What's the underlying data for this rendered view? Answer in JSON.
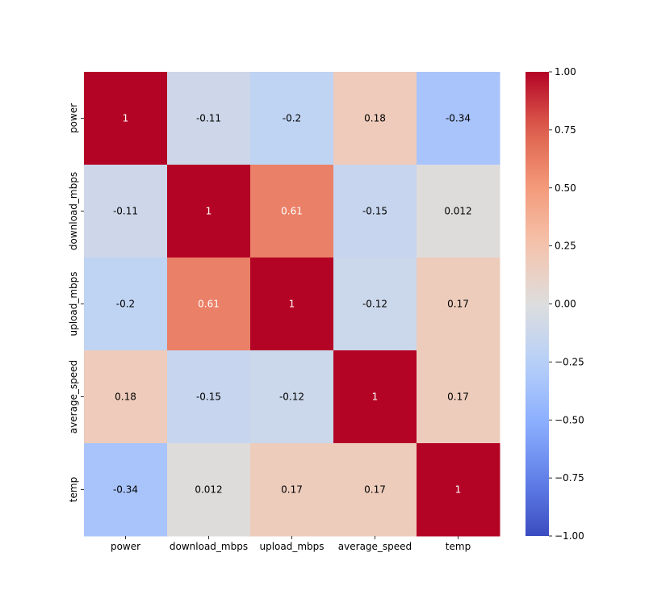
{
  "chart_data": {
    "type": "heatmap",
    "title": "",
    "xlabel": "",
    "ylabel": "",
    "categories": [
      "power",
      "download_mbps",
      "upload_mbps",
      "average_speed",
      "temp"
    ],
    "cell_labels": [
      [
        "1",
        "-0.11",
        "-0.2",
        "0.18",
        "-0.34"
      ],
      [
        "-0.11",
        "1",
        "0.61",
        "-0.15",
        "0.012"
      ],
      [
        "-0.2",
        "0.61",
        "1",
        "-0.12",
        "0.17"
      ],
      [
        "0.18",
        "-0.15",
        "-0.12",
        "1",
        "0.17"
      ],
      [
        "-0.34",
        "0.012",
        "0.17",
        "0.17",
        "1"
      ]
    ],
    "values": [
      [
        1,
        -0.11,
        -0.2,
        0.18,
        -0.34
      ],
      [
        -0.11,
        1,
        0.61,
        -0.15,
        0.012
      ],
      [
        -0.2,
        0.61,
        1,
        -0.12,
        0.17
      ],
      [
        0.18,
        -0.15,
        -0.12,
        1,
        0.17
      ],
      [
        -0.34,
        0.012,
        0.17,
        0.17,
        1
      ]
    ],
    "colormap": "coolwarm",
    "vmin": -1.0,
    "vmax": 1.0,
    "colorbar_ticks": [
      1.0,
      0.75,
      0.5,
      0.25,
      0.0,
      -0.25,
      -0.5,
      -0.75,
      -1.0
    ],
    "colorbar_tick_labels": [
      "1.00",
      "0.75",
      "0.50",
      "0.25",
      "0.00",
      "−0.25",
      "−0.50",
      "−0.75",
      "−1.00"
    ]
  }
}
